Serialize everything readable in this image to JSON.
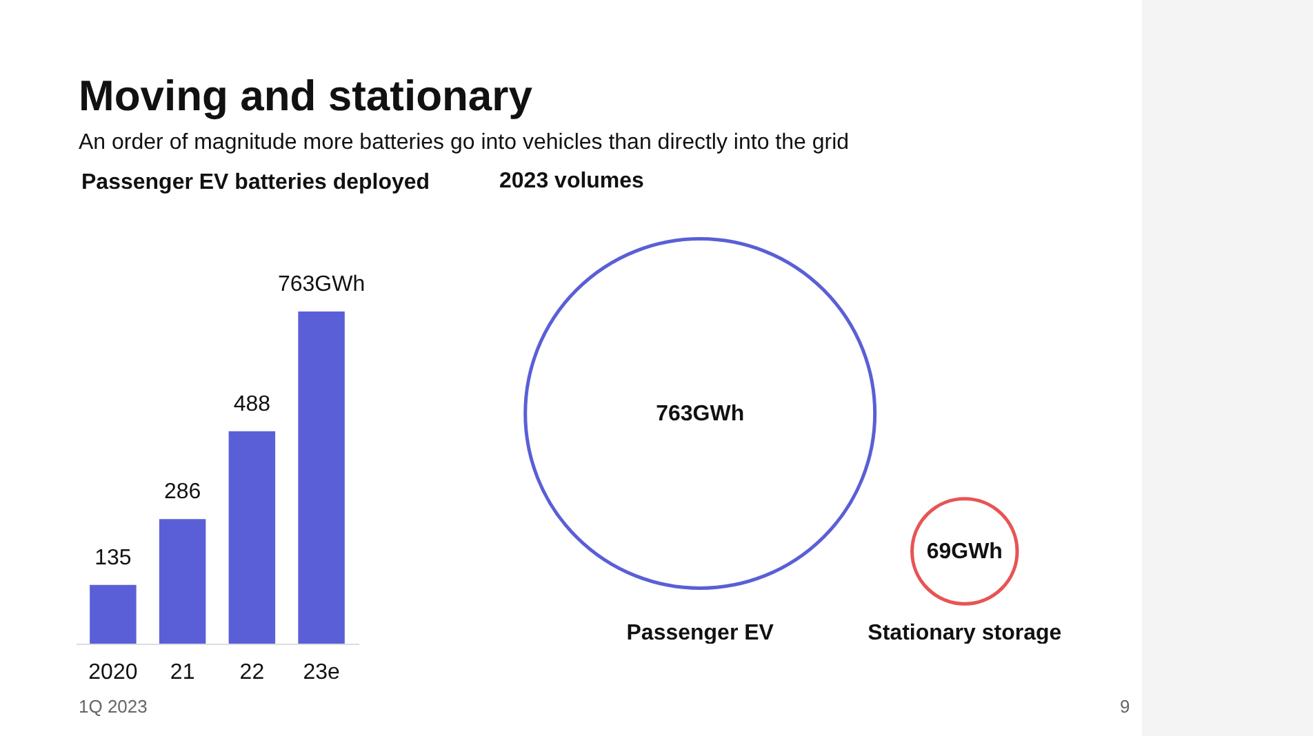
{
  "chart_data": [
    {
      "type": "other",
      "title": "Moving and stationary",
      "subtitle": "An order of magnitude more batteries go into vehicles than directly into the grid",
      "annotations": [
        "1Q 2023",
        "9"
      ]
    },
    {
      "type": "bar",
      "title": "Passenger EV batteries deployed",
      "categories": [
        "2020",
        "21",
        "22",
        "23e"
      ],
      "values": [
        135,
        286,
        488,
        763
      ],
      "color": "#5a5fd8",
      "value_labels": [
        "135",
        "286",
        "488",
        "763GWh"
      ]
    },
    {
      "type": "other",
      "title": "2023 volumes",
      "categories": [
        "Passenger EV",
        "Stationary storage"
      ],
      "values": [
        763,
        69
      ],
      "colors": [
        "#5a5fd6",
        "#e85454"
      ],
      "value_labels": [
        "763GWh",
        "69GWh"
      ]
    }
  ]
}
